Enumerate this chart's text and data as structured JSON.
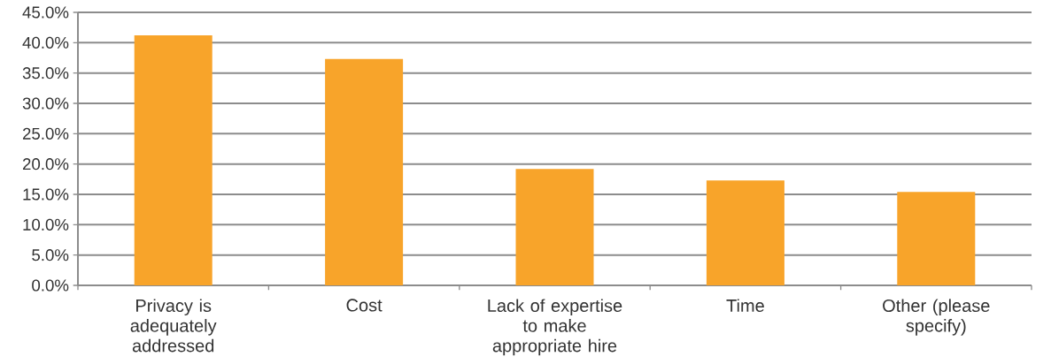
{
  "chart_data": {
    "type": "bar",
    "categories": [
      "Privacy is adequately addressed",
      "Cost",
      "Lack of expertise to make appropriate hire",
      "Time",
      "Other (please specify)"
    ],
    "values": [
      41.2,
      37.3,
      19.2,
      17.3,
      15.4
    ],
    "color": "#f8a42a",
    "ylim": [
      0,
      45
    ],
    "yticks": [
      {
        "value": 0,
        "label": "0.0%"
      },
      {
        "value": 5,
        "label": "5.0%"
      },
      {
        "value": 10,
        "label": "10.0%"
      },
      {
        "value": 15,
        "label": "15.0%"
      },
      {
        "value": 20,
        "label": "20.0%"
      },
      {
        "value": 25,
        "label": "25.0%"
      },
      {
        "value": 30,
        "label": "30.0%"
      },
      {
        "value": 35,
        "label": "35.0%"
      },
      {
        "value": 40,
        "label": "40.0%"
      },
      {
        "value": 45,
        "label": "45.0%"
      }
    ],
    "grid": "y"
  }
}
